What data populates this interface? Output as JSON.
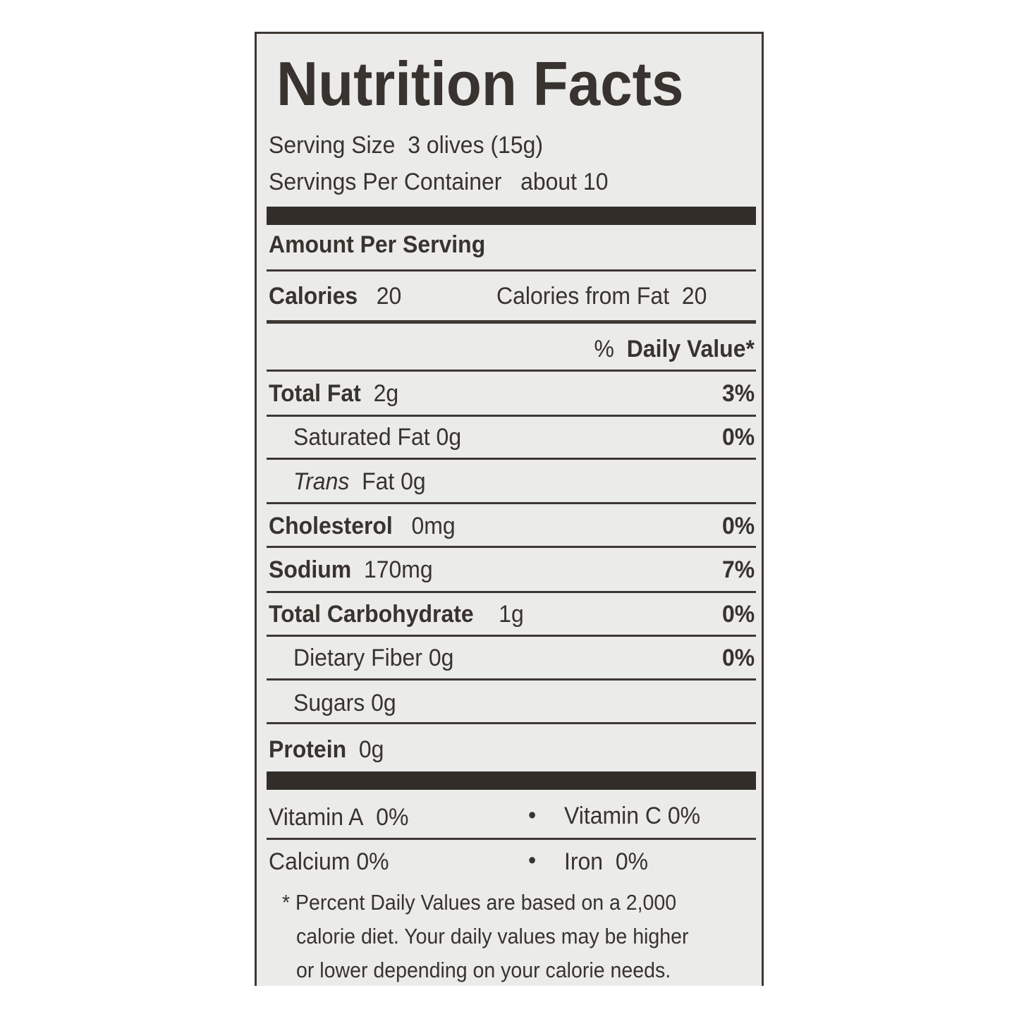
{
  "title": "Nutrition Facts",
  "serving_size": {
    "label": "Serving Size",
    "value": "3 olives (15g)"
  },
  "servings_per_container": {
    "label": "Servings Per Container",
    "value": "about 10"
  },
  "amount_per_serving": "Amount Per Serving",
  "calories": {
    "label": "Calories",
    "value": "20",
    "fat_label": "Calories from Fat",
    "fat_value": "20"
  },
  "daily_value_header": {
    "pct": "%",
    "label": "Daily Value*"
  },
  "nutrients": [
    {
      "label": "Total Fat",
      "amount": "2g",
      "dv": "3%"
    },
    {
      "label": "Saturated Fat",
      "amount": "0g",
      "dv": "0%"
    },
    {
      "label_italic": "Trans",
      "label": "Fat",
      "amount": "0g"
    },
    {
      "label": "Cholesterol",
      "amount": "0mg",
      "dv": "0%"
    },
    {
      "label": "Sodium",
      "amount": "170mg",
      "dv": "7%"
    },
    {
      "label": "Total Carbohydrate",
      "amount": "1g",
      "dv": "0%"
    },
    {
      "label": "Dietary Fiber",
      "amount": "0g",
      "dv": "0%"
    },
    {
      "label": "Sugars",
      "amount": "0g"
    },
    {
      "label": "Protein",
      "amount": "0g"
    }
  ],
  "vitamins": [
    {
      "label": "Vitamin A",
      "value": "0%"
    },
    {
      "label": "Vitamin C",
      "value": "0%"
    },
    {
      "label": "Calcium",
      "value": "0%"
    },
    {
      "label": "Iron",
      "value": "0%"
    }
  ],
  "bullet": "•",
  "footnote": [
    "* Percent Daily Values are based on a 2,000",
    "calorie diet. Your daily values may be higher",
    "or lower depending on your calorie needs."
  ]
}
